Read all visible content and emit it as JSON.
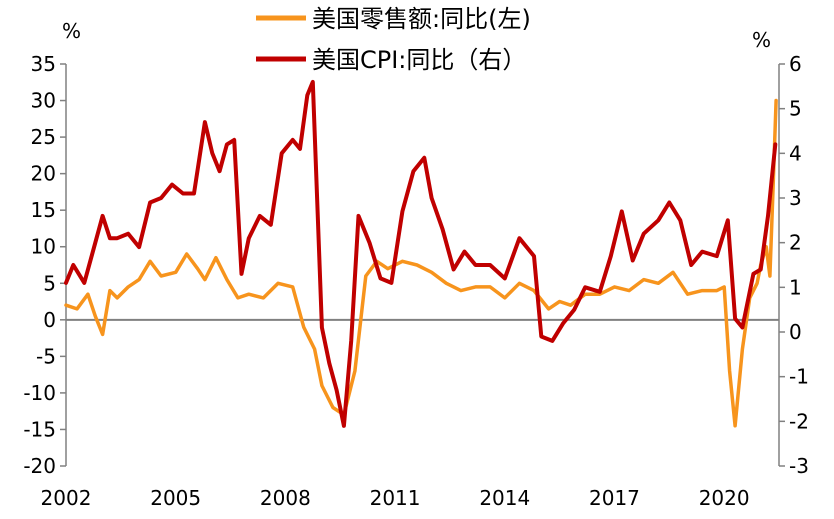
{
  "chart_data": {
    "type": "line",
    "title": "",
    "left_axis": {
      "unit_label": "%",
      "ylim": [
        -20,
        35
      ],
      "ticks": [
        -20,
        -15,
        -10,
        -5,
        0,
        5,
        10,
        15,
        20,
        25,
        30,
        35
      ]
    },
    "right_axis": {
      "unit_label": "%",
      "ylim": [
        -3,
        6
      ],
      "ticks": [
        -3,
        -2,
        -1,
        0,
        1,
        2,
        3,
        4,
        5,
        6
      ]
    },
    "x_axis": {
      "range": [
        2002.0,
        2021.5
      ],
      "tick_labels": [
        "2002",
        "2005",
        "2008",
        "2011",
        "2014",
        "2017",
        "2020"
      ]
    },
    "grid": false,
    "legend_position": "top-center",
    "series": [
      {
        "name": "美国零售额:同比(左)",
        "axis": "left",
        "color": "#f7941d",
        "x": [
          2002.0,
          2002.3,
          2002.6,
          2002.8,
          2003.0,
          2003.2,
          2003.4,
          2003.7,
          2004.0,
          2004.3,
          2004.6,
          2005.0,
          2005.3,
          2005.6,
          2005.8,
          2006.1,
          2006.4,
          2006.7,
          2007.0,
          2007.4,
          2007.8,
          2008.2,
          2008.5,
          2008.8,
          2009.0,
          2009.3,
          2009.6,
          2009.9,
          2010.2,
          2010.5,
          2010.8,
          2011.2,
          2011.6,
          2012.0,
          2012.4,
          2012.8,
          2013.2,
          2013.6,
          2014.0,
          2014.4,
          2014.8,
          2015.2,
          2015.5,
          2015.8,
          2016.2,
          2016.6,
          2017.0,
          2017.4,
          2017.8,
          2018.2,
          2018.6,
          2019.0,
          2019.4,
          2019.8,
          2020.0,
          2020.15,
          2020.3,
          2020.5,
          2020.7,
          2020.9,
          2021.0,
          2021.15,
          2021.25,
          2021.33,
          2021.42
        ],
        "values": [
          2,
          1.5,
          3.5,
          0.5,
          -2,
          4,
          3,
          4.5,
          5.5,
          8,
          6,
          6.5,
          9,
          7,
          5.5,
          8.5,
          5.5,
          3,
          3.5,
          3,
          5,
          4.5,
          -1,
          -4,
          -9,
          -12,
          -13,
          -7,
          6,
          8,
          7,
          8,
          7.5,
          6.5,
          5,
          4,
          4.5,
          4.5,
          3,
          5,
          4,
          1.5,
          2.5,
          2,
          3.5,
          3.5,
          4.5,
          4,
          5.5,
          5,
          6.5,
          3.5,
          4,
          4,
          4.5,
          -7,
          -14.5,
          -4,
          3,
          5,
          7.5,
          10,
          6,
          17,
          30
        ]
      },
      {
        "name": "美国CPI:同比（右）",
        "axis": "right",
        "color": "#c00000",
        "x": [
          2002.0,
          2002.2,
          2002.5,
          2002.8,
          2003.0,
          2003.2,
          2003.4,
          2003.7,
          2004.0,
          2004.3,
          2004.6,
          2004.9,
          2005.2,
          2005.5,
          2005.8,
          2006.0,
          2006.2,
          2006.4,
          2006.6,
          2006.8,
          2007.0,
          2007.3,
          2007.6,
          2007.9,
          2008.2,
          2008.4,
          2008.6,
          2008.75,
          2009.0,
          2009.2,
          2009.4,
          2009.6,
          2009.8,
          2010.0,
          2010.3,
          2010.6,
          2010.9,
          2011.2,
          2011.5,
          2011.8,
          2012.0,
          2012.3,
          2012.6,
          2012.9,
          2013.2,
          2013.6,
          2014.0,
          2014.4,
          2014.8,
          2015.0,
          2015.3,
          2015.6,
          2015.9,
          2016.2,
          2016.6,
          2016.9,
          2017.2,
          2017.5,
          2017.8,
          2018.2,
          2018.5,
          2018.8,
          2019.1,
          2019.4,
          2019.8,
          2020.1,
          2020.3,
          2020.5,
          2020.8,
          2021.0,
          2021.2,
          2021.4
        ],
        "values": [
          1.1,
          1.5,
          1.1,
          2.0,
          2.6,
          2.1,
          2.1,
          2.2,
          1.9,
          2.9,
          3.0,
          3.3,
          3.1,
          3.1,
          4.7,
          4.0,
          3.6,
          4.2,
          4.3,
          1.3,
          2.1,
          2.6,
          2.4,
          4.0,
          4.3,
          4.1,
          5.3,
          5.6,
          0.1,
          -0.7,
          -1.3,
          -2.1,
          -0.2,
          2.6,
          2.0,
          1.2,
          1.1,
          2.7,
          3.6,
          3.9,
          3.0,
          2.3,
          1.4,
          1.8,
          1.5,
          1.5,
          1.2,
          2.1,
          1.7,
          -0.1,
          -0.2,
          0.2,
          0.5,
          1.0,
          0.9,
          1.7,
          2.7,
          1.6,
          2.2,
          2.5,
          2.9,
          2.5,
          1.5,
          1.8,
          1.7,
          2.5,
          0.3,
          0.1,
          1.3,
          1.4,
          2.6,
          4.2
        ]
      }
    ]
  }
}
